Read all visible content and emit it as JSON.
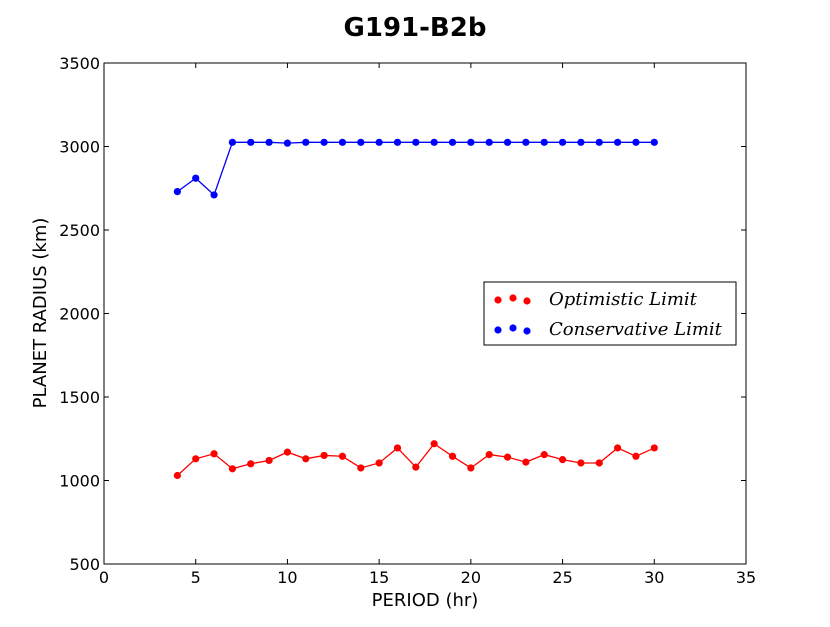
{
  "chart_data": {
    "type": "line",
    "title": "G191-B2b",
    "xlabel": "PERIOD (hr)",
    "ylabel": "PLANET RADIUS (km)",
    "xlim": [
      0,
      35
    ],
    "ylim": [
      500,
      3500
    ],
    "xticks": [
      "0",
      "5",
      "10",
      "15",
      "20",
      "25",
      "30",
      "35"
    ],
    "yticks": [
      "500",
      "1000",
      "1500",
      "2000",
      "2500",
      "3000",
      "3500"
    ],
    "grid": false,
    "legend_position": "center-right",
    "x": [
      4,
      5,
      6,
      7,
      8,
      9,
      10,
      11,
      12,
      13,
      14,
      15,
      16,
      17,
      18,
      19,
      20,
      21,
      22,
      23,
      24,
      25,
      26,
      27,
      28,
      29,
      30
    ],
    "series": [
      {
        "name": "Optimistic Limit",
        "color": "#ff0000",
        "values": [
          1030,
          1130,
          1160,
          1070,
          1100,
          1120,
          1170,
          1130,
          1150,
          1145,
          1075,
          1105,
          1195,
          1080,
          1220,
          1145,
          1075,
          1155,
          1140,
          1110,
          1155,
          1125,
          1105,
          1105,
          1195,
          1145,
          1195
        ]
      },
      {
        "name": "Conservative Limit",
        "color": "#0000ff",
        "values": [
          2730,
          2810,
          2710,
          3025,
          3025,
          3025,
          3020,
          3025,
          3025,
          3025,
          3025,
          3025,
          3025,
          3025,
          3025,
          3025,
          3025,
          3025,
          3025,
          3025,
          3025,
          3025,
          3025,
          3025,
          3025,
          3025,
          3025
        ]
      }
    ]
  }
}
